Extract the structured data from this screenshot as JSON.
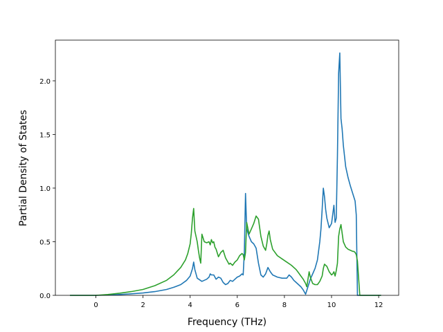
{
  "chart_data": {
    "type": "line",
    "title": "",
    "xlabel": "Frequency (THz)",
    "ylabel": "Partial Density of States",
    "xlim": [
      -1.72,
      12.85
    ],
    "ylim": [
      0,
      2.38
    ],
    "grid": false,
    "x_ticks": [
      0,
      2,
      4,
      6,
      8,
      10,
      12
    ],
    "y_ticks": [
      0.0,
      0.5,
      1.0,
      1.5,
      2.0
    ],
    "x_tick_labels": [
      "0",
      "2",
      "4",
      "6",
      "8",
      "10",
      "12"
    ],
    "y_tick_labels": [
      "0.0",
      "0.5",
      "1.0",
      "1.5",
      "2.0"
    ],
    "series": [
      {
        "color": "#1f77b4",
        "x": [
          -1.1,
          -0.5,
          0.0,
          0.5,
          1.0,
          1.5,
          2.0,
          2.5,
          3.0,
          3.3,
          3.6,
          3.85,
          4.0,
          4.1,
          4.15,
          4.2,
          4.3,
          4.5,
          4.7,
          4.8,
          4.85,
          4.9,
          5.0,
          5.1,
          5.2,
          5.3,
          5.4,
          5.5,
          5.6,
          5.7,
          5.8,
          5.9,
          6.0,
          6.1,
          6.2,
          6.25,
          6.3,
          6.35,
          6.4,
          6.5,
          6.6,
          6.7,
          6.8,
          6.9,
          7.0,
          7.1,
          7.2,
          7.3,
          7.4,
          7.5,
          7.7,
          7.9,
          8.1,
          8.2,
          8.3,
          8.4,
          8.5,
          8.6,
          8.7,
          8.8,
          8.9,
          9.0,
          9.1,
          9.2,
          9.3,
          9.4,
          9.5,
          9.55,
          9.6,
          9.65,
          9.7,
          9.75,
          9.8,
          9.9,
          10.0,
          10.1,
          10.15,
          10.2,
          10.25,
          10.3,
          10.35,
          10.4,
          10.45,
          10.5,
          10.6,
          10.7,
          10.8,
          10.9,
          11.0,
          11.05,
          11.1,
          11.2,
          12.1
        ],
        "values": [
          0.0,
          0.0,
          0.0,
          0.003,
          0.008,
          0.014,
          0.022,
          0.035,
          0.055,
          0.075,
          0.1,
          0.14,
          0.18,
          0.25,
          0.31,
          0.24,
          0.16,
          0.13,
          0.15,
          0.17,
          0.2,
          0.19,
          0.19,
          0.15,
          0.17,
          0.16,
          0.12,
          0.1,
          0.11,
          0.14,
          0.13,
          0.15,
          0.17,
          0.18,
          0.2,
          0.19,
          0.4,
          0.95,
          0.62,
          0.55,
          0.5,
          0.48,
          0.44,
          0.3,
          0.19,
          0.17,
          0.2,
          0.26,
          0.22,
          0.19,
          0.17,
          0.16,
          0.16,
          0.19,
          0.17,
          0.14,
          0.12,
          0.1,
          0.08,
          0.05,
          0.01,
          0.08,
          0.15,
          0.2,
          0.25,
          0.33,
          0.5,
          0.62,
          0.8,
          1.0,
          0.92,
          0.8,
          0.72,
          0.63,
          0.67,
          0.84,
          0.68,
          0.72,
          1.3,
          2.07,
          2.26,
          1.65,
          1.55,
          1.4,
          1.2,
          1.1,
          1.02,
          0.95,
          0.88,
          0.75,
          0.0,
          0.0,
          0.0
        ]
      },
      {
        "color": "#2ca02c",
        "x": [
          -1.1,
          -0.5,
          0.0,
          0.5,
          1.0,
          1.5,
          2.0,
          2.5,
          3.0,
          3.3,
          3.6,
          3.8,
          3.9,
          4.0,
          4.05,
          4.1,
          4.15,
          4.2,
          4.3,
          4.35,
          4.4,
          4.45,
          4.5,
          4.6,
          4.7,
          4.8,
          4.85,
          4.9,
          4.95,
          5.0,
          5.05,
          5.1,
          5.2,
          5.3,
          5.4,
          5.5,
          5.6,
          5.65,
          5.7,
          5.8,
          5.9,
          6.0,
          6.1,
          6.2,
          6.25,
          6.3,
          6.35,
          6.4,
          6.5,
          6.6,
          6.7,
          6.8,
          6.9,
          7.0,
          7.1,
          7.2,
          7.25,
          7.3,
          7.35,
          7.4,
          7.5,
          7.7,
          7.9,
          8.1,
          8.3,
          8.5,
          8.6,
          8.7,
          8.8,
          8.9,
          8.95,
          9.0,
          9.05,
          9.1,
          9.2,
          9.3,
          9.4,
          9.5,
          9.6,
          9.65,
          9.7,
          9.8,
          9.9,
          10.0,
          10.05,
          10.1,
          10.15,
          10.2,
          10.25,
          10.3,
          10.35,
          10.4,
          10.5,
          10.6,
          10.7,
          10.8,
          10.9,
          10.95,
          11.0,
          11.05,
          11.1,
          11.2,
          12.1
        ],
        "values": [
          0.0,
          0.0,
          0.0,
          0.008,
          0.02,
          0.035,
          0.055,
          0.09,
          0.14,
          0.19,
          0.26,
          0.33,
          0.39,
          0.48,
          0.58,
          0.72,
          0.81,
          0.6,
          0.5,
          0.42,
          0.35,
          0.3,
          0.57,
          0.5,
          0.49,
          0.5,
          0.47,
          0.52,
          0.49,
          0.5,
          0.45,
          0.43,
          0.36,
          0.4,
          0.42,
          0.35,
          0.31,
          0.29,
          0.3,
          0.28,
          0.31,
          0.33,
          0.37,
          0.39,
          0.38,
          0.33,
          0.4,
          0.68,
          0.57,
          0.62,
          0.67,
          0.74,
          0.71,
          0.55,
          0.46,
          0.42,
          0.48,
          0.56,
          0.6,
          0.52,
          0.43,
          0.37,
          0.34,
          0.31,
          0.28,
          0.24,
          0.21,
          0.18,
          0.15,
          0.11,
          0.08,
          0.15,
          0.22,
          0.17,
          0.11,
          0.1,
          0.1,
          0.13,
          0.18,
          0.25,
          0.29,
          0.27,
          0.22,
          0.19,
          0.2,
          0.22,
          0.18,
          0.23,
          0.3,
          0.55,
          0.62,
          0.66,
          0.5,
          0.45,
          0.43,
          0.42,
          0.41,
          0.41,
          0.4,
          0.38,
          0.32,
          0.0,
          0.0
        ]
      }
    ]
  }
}
